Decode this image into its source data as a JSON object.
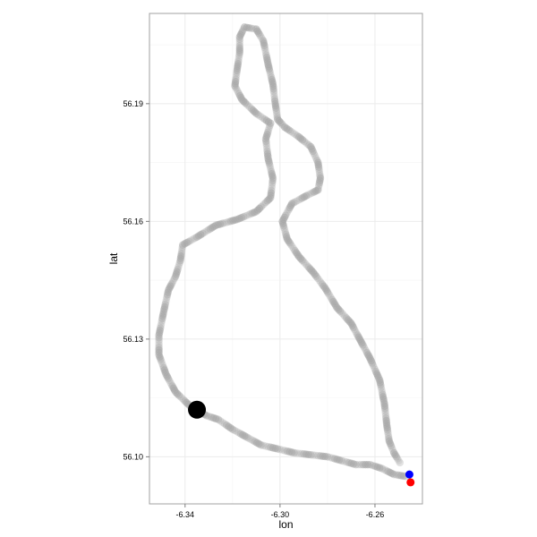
{
  "chart_data": {
    "type": "scatter",
    "title": "",
    "xlabel": "lon",
    "ylabel": "lat",
    "xlim": [
      -6.355,
      -6.24
    ],
    "ylim": [
      56.088,
      56.213
    ],
    "x_ticks": [
      -6.34,
      -6.3,
      -6.26
    ],
    "x_tick_labels": [
      "-6.34",
      "-6.30",
      "-6.26"
    ],
    "y_ticks": [
      56.1,
      56.13,
      56.16,
      56.19
    ],
    "y_tick_labels": [
      "56.10",
      "56.13",
      "56.16",
      "56.19"
    ],
    "grid": true,
    "colors": {
      "track": "#c8c8c8",
      "marker_large": "#000000",
      "marker_blue": "#0000ff",
      "marker_red": "#ff0000",
      "panel_border": "#a0a0a0",
      "grid_major": "#ebebeb",
      "grid_minor": "#f5f5f5"
    },
    "track_points": [
      [
        -6.247,
        56.095
      ],
      [
        -6.252,
        56.0955
      ],
      [
        -6.257,
        56.097
      ],
      [
        -6.262,
        56.098
      ],
      [
        -6.268,
        56.098
      ],
      [
        -6.274,
        56.099
      ],
      [
        -6.28,
        56.1
      ],
      [
        -6.287,
        56.1005
      ],
      [
        -6.294,
        56.101
      ],
      [
        -6.301,
        56.102
      ],
      [
        -6.308,
        56.103
      ],
      [
        -6.314,
        56.105
      ],
      [
        -6.32,
        56.107
      ],
      [
        -6.326,
        56.1095
      ],
      [
        -6.331,
        56.1105
      ],
      [
        -6.338,
        56.113
      ],
      [
        -6.344,
        56.1165
      ],
      [
        -6.348,
        56.121
      ],
      [
        -6.351,
        56.126
      ],
      [
        -6.351,
        56.131
      ],
      [
        -6.349,
        56.137
      ],
      [
        -6.347,
        56.1425
      ],
      [
        -6.344,
        56.146
      ],
      [
        -6.342,
        56.15
      ],
      [
        -6.341,
        56.154
      ],
      [
        -6.335,
        56.156
      ],
      [
        -6.327,
        56.159
      ],
      [
        -6.318,
        56.1605
      ],
      [
        -6.31,
        56.1625
      ],
      [
        -6.304,
        56.166
      ],
      [
        -6.303,
        56.171
      ],
      [
        -6.305,
        56.176
      ],
      [
        -6.306,
        56.181
      ],
      [
        -6.304,
        56.185
      ],
      [
        -6.31,
        56.1875
      ],
      [
        -6.316,
        56.191
      ],
      [
        -6.319,
        56.1945
      ],
      [
        -6.318,
        56.199
      ],
      [
        -6.317,
        56.203
      ],
      [
        -6.317,
        56.207
      ],
      [
        -6.315,
        56.2095
      ],
      [
        -6.31,
        56.209
      ],
      [
        -6.307,
        56.206
      ],
      [
        -6.305,
        56.2
      ],
      [
        -6.303,
        56.195
      ],
      [
        -6.302,
        56.19
      ],
      [
        -6.301,
        56.186
      ],
      [
        -6.298,
        56.184
      ],
      [
        -6.292,
        56.1815
      ],
      [
        -6.287,
        56.179
      ],
      [
        -6.284,
        56.175
      ],
      [
        -6.283,
        56.171
      ],
      [
        -6.284,
        56.168
      ],
      [
        -6.289,
        56.1665
      ],
      [
        -6.295,
        56.1645
      ],
      [
        -6.299,
        56.16
      ],
      [
        -6.297,
        56.1555
      ],
      [
        -6.292,
        56.151
      ],
      [
        -6.286,
        56.147
      ],
      [
        -6.281,
        56.143
      ],
      [
        -6.276,
        56.138
      ],
      [
        -6.27,
        56.134
      ],
      [
        -6.266,
        56.1295
      ],
      [
        -6.262,
        56.125
      ],
      [
        -6.258,
        56.1195
      ],
      [
        -6.256,
        56.1135
      ],
      [
        -6.255,
        56.108
      ],
      [
        -6.254,
        56.104
      ],
      [
        -6.252,
        56.101
      ],
      [
        -6.249,
        56.098
      ]
    ],
    "highlight_points": [
      {
        "name": "large-black",
        "x": -6.335,
        "y": 56.112,
        "color": "#000000"
      },
      {
        "name": "blue",
        "x": -6.2455,
        "y": 56.0955,
        "color": "#0000ff"
      },
      {
        "name": "red",
        "x": -6.245,
        "y": 56.0935,
        "color": "#ff0000"
      }
    ]
  }
}
